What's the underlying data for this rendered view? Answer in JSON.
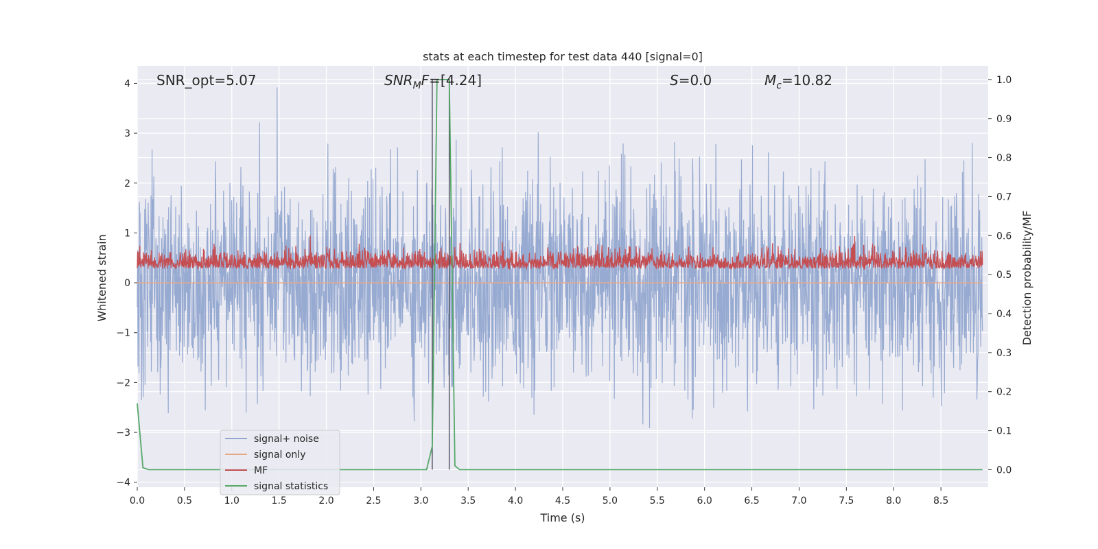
{
  "chart_data": {
    "type": "line",
    "title": "stats at each timestep for test data 440 [signal=0]",
    "xlabel": "Time (s)",
    "ylabel": "Whitened strain",
    "ylabel_right": "Detection probability/MF",
    "xlim": [
      0,
      9.0
    ],
    "ylim": [
      -4.1,
      4.35
    ],
    "ylim_right": [
      -0.045,
      1.035
    ],
    "x_ticks": [
      "0.0",
      "0.5",
      "1.0",
      "1.5",
      "2.0",
      "2.5",
      "3.0",
      "3.5",
      "4.0",
      "4.5",
      "5.0",
      "5.5",
      "6.0",
      "6.5",
      "7.0",
      "7.5",
      "8.0",
      "8.5"
    ],
    "y_ticks": [
      "4",
      "3",
      "2",
      "1",
      "0",
      "−1",
      "−2",
      "−3",
      "−4"
    ],
    "y_ticks_right": [
      "1.0",
      "0.9",
      "0.8",
      "0.7",
      "0.6",
      "0.5",
      "0.4",
      "0.3",
      "0.2",
      "0.1",
      "0.0"
    ],
    "grid": true,
    "legend_position": "lower-left",
    "annotations": {
      "snr_opt": "SNR_opt=5.07",
      "snr_mf_main": "SNR",
      "snr_mf_sub": "M",
      "snr_mf_tail": "F",
      "snr_mf_value": "=[4.24]",
      "s_main": "S",
      "s_value": "=0.0",
      "mc_main": "M",
      "mc_sub": "c",
      "mc_value": "=10.82"
    },
    "vertical_markers": [
      3.12,
      3.3
    ],
    "series": [
      {
        "name": "signal+ noise",
        "color": "#92a6cf",
        "axis": "left",
        "description_values": "white noise, std ~1, spans -3.6 to 4.0"
      },
      {
        "name": "signal only",
        "color": "#e8a888",
        "axis": "left",
        "values": "flat at 0"
      },
      {
        "name": "MF",
        "color": "#c44e52",
        "axis": "right",
        "range": [
          0.5,
          0.6
        ]
      },
      {
        "name": "signal statistics",
        "color": "#55a868",
        "axis": "right",
        "x": [
          0.0,
          0.06,
          0.12,
          0.5,
          1.0,
          1.5,
          2.0,
          2.5,
          3.0,
          3.06,
          3.12,
          3.17,
          3.22,
          3.26,
          3.3,
          3.36,
          3.41,
          3.46,
          4.0,
          5.0,
          6.0,
          7.0,
          8.0,
          8.94
        ],
        "y": [
          0.17,
          0.005,
          0.0,
          0.0,
          0.0,
          0.0,
          0.0,
          0.0,
          0.0,
          0.0,
          0.06,
          1.0,
          1.0,
          1.0,
          1.0,
          0.01,
          0.0,
          0.0,
          0.0,
          0.0,
          0.0,
          0.0,
          0.0,
          0.0
        ]
      }
    ]
  }
}
